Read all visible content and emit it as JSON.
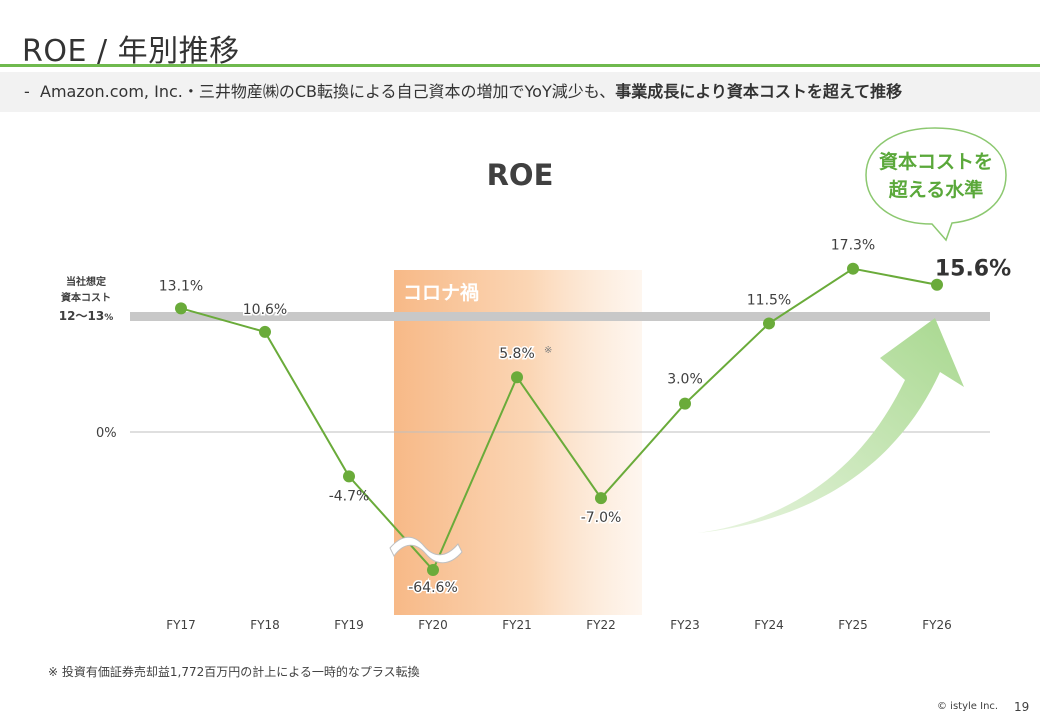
{
  "header": {
    "title": "ROE / 年別推移",
    "subtitle_dash": "-",
    "subtitle_plain": "Amazon.com, Inc.・三井物産㈱のCB転換による自己資本の増加でYoY減少も、",
    "subtitle_bold": "事業成長により資本コストを超えて推移"
  },
  "colors": {
    "accent_green": "#6fb94e",
    "line_green": "#6aab3a",
    "covid_band": "#f7b987",
    "cost_band": "#c8c8c8",
    "arrow_green": "#b9e0a5"
  },
  "chart_data": {
    "type": "line",
    "title": "ROE",
    "categories": [
      "FY17",
      "FY18",
      "FY19",
      "FY20",
      "FY21",
      "FY22",
      "FY23",
      "FY24",
      "FY25",
      "FY26"
    ],
    "values": [
      13.1,
      10.6,
      -4.7,
      -64.6,
      5.8,
      -7.0,
      3.0,
      11.5,
      17.3,
      15.6
    ],
    "value_labels": [
      "13.1%",
      "10.6%",
      "-4.7%",
      "-64.6%",
      "5.8%",
      "-7.0%",
      "3.0%",
      "11.5%",
      "17.3%",
      "15.6%"
    ],
    "axis_break": {
      "between": [
        "FY19",
        "FY20"
      ],
      "note": "y-axis broken; FY20 value drawn truncated"
    },
    "zero_label": "0%",
    "cost_of_capital": {
      "line1": "当社想定",
      "line2": "資本コスト",
      "range_text": "12〜13",
      "range_unit": "%",
      "range": [
        12,
        13
      ]
    },
    "covid_period": {
      "label": "コロナ禍",
      "from": "FY20",
      "to": "FY22"
    },
    "fy21_note_mark": "※",
    "callout": {
      "line1": "資本コストを",
      "line2": "超える水準"
    },
    "grid": false,
    "legend": "none"
  },
  "footnote": "※ 投資有価証券売却益1,772百万円の計上による一時的なプラス転換",
  "copyright": "© istyle Inc.",
  "page_number": "19"
}
